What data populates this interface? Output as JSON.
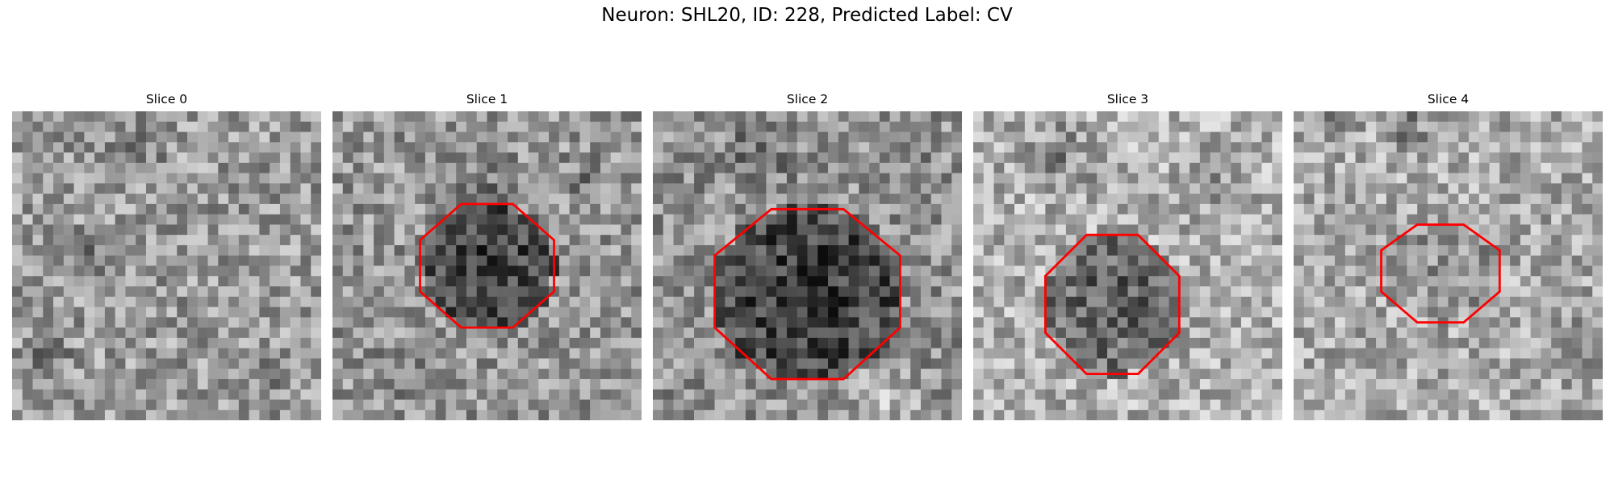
{
  "figure": {
    "title": "Neuron: SHL20, ID: 228, Predicted Label: CV"
  },
  "colors": {
    "contour": "#ff0000",
    "background": "#ffffff"
  },
  "panels": [
    {
      "title": "Slice 0",
      "has_contour": false
    },
    {
      "title": "Slice 1",
      "has_contour": true
    },
    {
      "title": "Slice 2",
      "has_contour": true
    },
    {
      "title": "Slice 3",
      "has_contour": true
    },
    {
      "title": "Slice 4",
      "has_contour": true
    }
  ]
}
